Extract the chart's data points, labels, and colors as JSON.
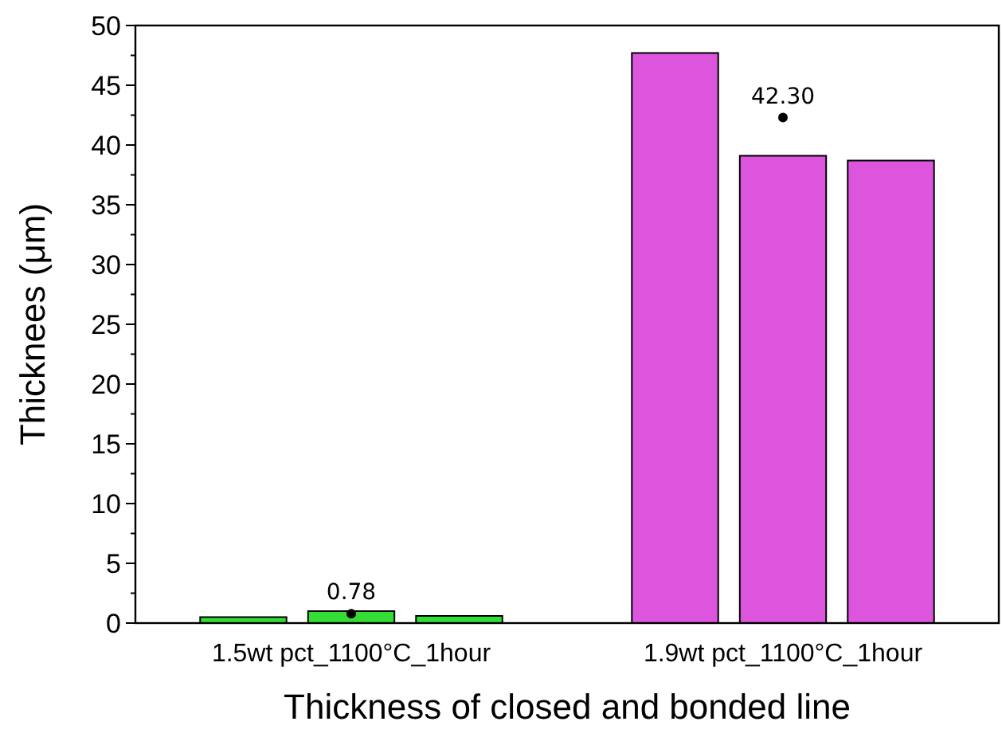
{
  "chart_data": {
    "type": "bar",
    "xlabel": "Thickness of closed and bonded line",
    "ylabel": "Thicknees (μm)",
    "categories": [
      null,
      "1.5wt pct_1100°C_1hour",
      null,
      null,
      null,
      "1.9wt pct_1100°C_1hour",
      null
    ],
    "series": [
      {
        "values": [
          0.5,
          1.0,
          0.6,
          null,
          47.7,
          39.1,
          38.7
        ],
        "colors": [
          "#33dd33",
          "#33dd33",
          "#33dd33",
          null,
          "#dd55dd",
          "#dd55dd",
          "#dd55dd"
        ]
      },
      {
        "type": "scatter",
        "x": [
          "1.5wt pct_1100°C_1hour",
          "1.9wt pct_1100°C_1hour"
        ],
        "values": [
          0.78,
          42.3
        ],
        "value_labels": [
          "0.78",
          "42.30"
        ],
        "color": "#000000",
        "marker": "circle"
      }
    ],
    "ylim": [
      0,
      50
    ],
    "yticks": [
      0,
      {
        "value": 2.5,
        "label": null
      },
      5,
      {
        "value": 7.5,
        "label": null
      },
      10,
      {
        "value": 12.5,
        "label": null
      },
      15,
      {
        "value": 17.5,
        "label": null
      },
      20,
      {
        "value": 22.5,
        "label": null
      },
      25,
      {
        "value": 27.5,
        "label": null
      },
      30,
      {
        "value": 32.5,
        "label": null
      },
      35,
      {
        "value": 37.5,
        "label": null
      },
      40,
      {
        "value": 42.5,
        "label": null
      },
      45,
      {
        "value": 47.5,
        "label": null
      },
      50
    ],
    "grid": false
  }
}
